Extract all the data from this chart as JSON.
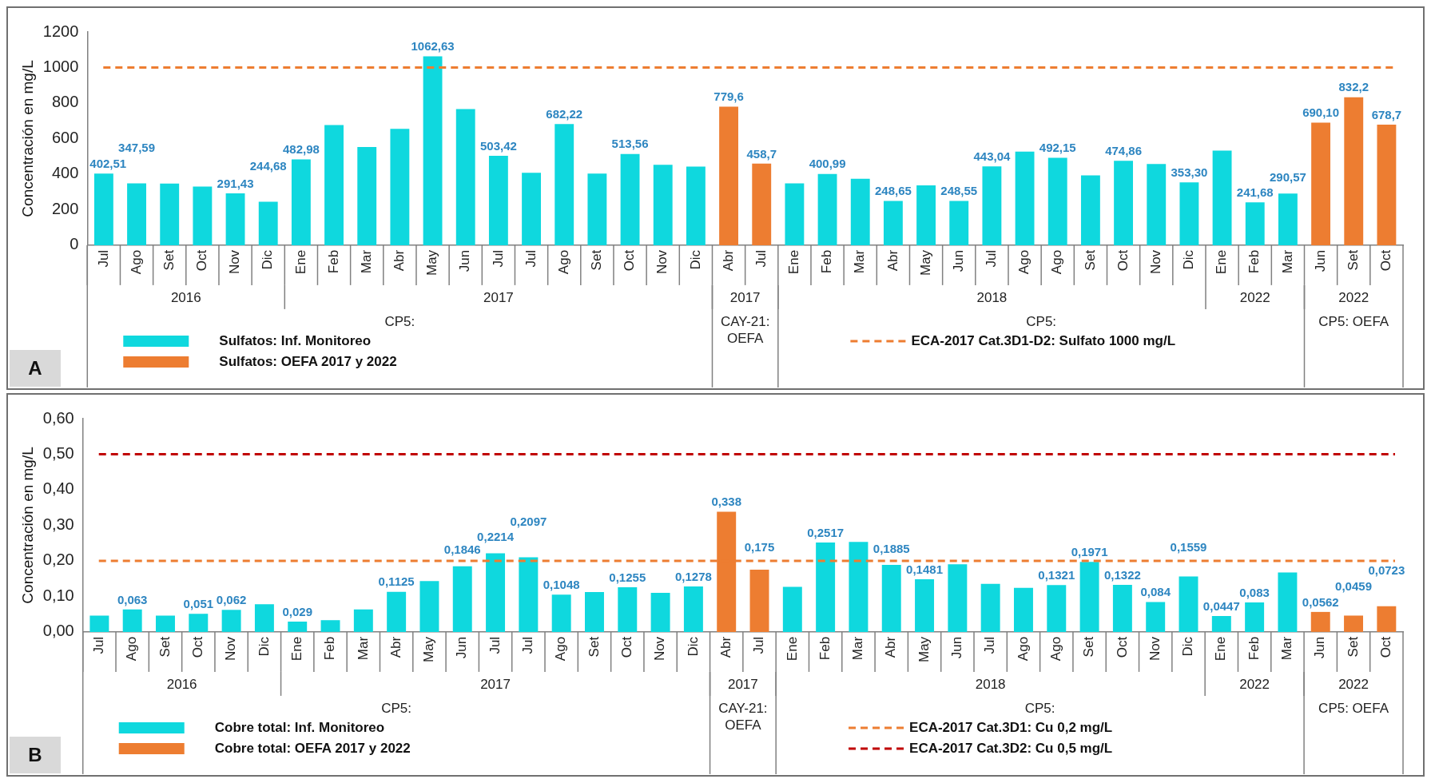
{
  "chart_data": [
    {
      "type": "bar",
      "title": "A",
      "ylabel": "Concentración en mg/L",
      "legend": "bottom",
      "categories": [
        "Jul",
        "Ago",
        "Set",
        "Oct",
        "Nov",
        "Dic",
        "Ene",
        "Feb",
        "Mar",
        "Abr",
        "May",
        "Jun",
        "Jul",
        "Jul",
        "Ago",
        "Set",
        "Oct",
        "Nov",
        "Dic",
        "Abr",
        "Jul",
        "Ene",
        "Feb",
        "Mar",
        "Abr",
        "May",
        "Jun",
        "Jul",
        "Ago",
        "Ago",
        "Set",
        "Oct",
        "Nov",
        "Dic",
        "Ene",
        "Feb",
        "Mar",
        "Jun",
        "Set",
        "Oct"
      ],
      "series": [
        {
          "name": "Sulfatos: Inf. Monitoreo",
          "color": "#0fd8de",
          "values": [
            402.51,
            347.59,
            347,
            330,
            291.43,
            244.68,
            482.98,
            676,
            553,
            655,
            1062.63,
            766,
            503.42,
            408,
            682.22,
            403,
            513.56,
            453,
            442,
            null,
            null,
            348,
            400.99,
            374,
            248.65,
            337,
            248.55,
            443.04,
            527,
            492.15,
            393,
            474.86,
            457,
            353.3,
            532,
            241.68,
            290.57,
            null,
            null,
            null
          ],
          "value_labels": [
            "402,51",
            "347,59",
            null,
            null,
            "291,43",
            "244,68",
            "482,98",
            null,
            null,
            null,
            "1062,63",
            null,
            "503,42",
            null,
            "682,22",
            null,
            "513,56",
            null,
            null,
            null,
            null,
            null,
            "400,99",
            null,
            "248,65",
            null,
            "248,55",
            "443,04",
            null,
            "492,15",
            null,
            "474,86",
            null,
            "353,30",
            null,
            "241,68",
            "290,57",
            null,
            null,
            null
          ]
        },
        {
          "name": "Sulfatos: OEFA 2017 y 2022",
          "color": "#ed7d31",
          "values": [
            null,
            null,
            null,
            null,
            null,
            null,
            null,
            null,
            null,
            null,
            null,
            null,
            null,
            null,
            null,
            null,
            null,
            null,
            null,
            779.6,
            458.7,
            null,
            null,
            null,
            null,
            null,
            null,
            null,
            null,
            null,
            null,
            null,
            null,
            null,
            null,
            null,
            null,
            690.1,
            832.2,
            678.7
          ],
          "value_labels": [
            null,
            null,
            null,
            null,
            null,
            null,
            null,
            null,
            null,
            null,
            null,
            null,
            null,
            null,
            null,
            null,
            null,
            null,
            null,
            "779,6",
            "458,7",
            null,
            null,
            null,
            null,
            null,
            null,
            null,
            null,
            null,
            null,
            null,
            null,
            null,
            null,
            null,
            null,
            "690,10",
            "832,2",
            "678,7"
          ]
        }
      ],
      "ylim": [
        0,
        1200
      ],
      "yticks": [
        0,
        200,
        400,
        600,
        800,
        1000,
        1200
      ],
      "ref_lines": [
        {
          "axis": "y",
          "value": 1000,
          "label": "ECA-2017 Cat.3D1-D2: Sulfato 1000 mg/L",
          "color": "#ed7d31",
          "line_style": "dashed"
        }
      ],
      "annotations": [
        "2016",
        "2017",
        "2017",
        "2018",
        "2022",
        "2022",
        "CP5:",
        "CAY-21: OEFA",
        "CP5:",
        "CP5: OEFA"
      ]
    },
    {
      "type": "bar",
      "title": "B",
      "ylabel": "Concentración en mg/L",
      "legend": "bottom",
      "categories": [
        "Jul",
        "Ago",
        "Set",
        "Oct",
        "Nov",
        "Dic",
        "Ene",
        "Feb",
        "Mar",
        "Abr",
        "May",
        "Jun",
        "Jul",
        "Jul",
        "Ago",
        "Set",
        "Oct",
        "Nov",
        "Dic",
        "Abr",
        "Jul",
        "Ene",
        "Feb",
        "Mar",
        "Abr",
        "May",
        "Jun",
        "Jul",
        "Ago",
        "Ago",
        "Set",
        "Oct",
        "Nov",
        "Dic",
        "Ene",
        "Feb",
        "Mar",
        "Jun",
        "Set",
        "Oct"
      ],
      "series": [
        {
          "name": "Cobre total: Inf. Monitoreo",
          "color": "#0fd8de",
          "values": [
            0.046,
            0.063,
            0.046,
            0.051,
            0.062,
            0.078,
            0.029,
            0.033,
            0.063,
            0.1125,
            0.143,
            0.1846,
            0.2214,
            0.2097,
            0.1048,
            0.112,
            0.1255,
            0.11,
            0.1278,
            null,
            null,
            0.127,
            0.2517,
            0.253,
            0.1885,
            0.1481,
            0.19,
            0.135,
            0.124,
            0.1321,
            0.1971,
            0.1322,
            0.084,
            0.1559,
            0.0447,
            0.083,
            0.167,
            null,
            null,
            null
          ],
          "value_labels": [
            null,
            "0,063",
            null,
            "0,051",
            "0,062",
            null,
            "0,029",
            null,
            null,
            "0,1125",
            null,
            "0,1846",
            "0,2214",
            "0,2097",
            "0,1048",
            null,
            "0,1255",
            null,
            "0,1278",
            null,
            null,
            null,
            "0,2517",
            null,
            "0,1885",
            "0,1481",
            null,
            null,
            null,
            "0,1321",
            "0,1971",
            "0,1322",
            "0,084",
            "0,1559",
            "0,0447",
            "0,083",
            null,
            null,
            null,
            null
          ]
        },
        {
          "name": "Cobre total: OEFA 2017 y 2022",
          "color": "#ed7d31",
          "values": [
            null,
            null,
            null,
            null,
            null,
            null,
            null,
            null,
            null,
            null,
            null,
            null,
            null,
            null,
            null,
            null,
            null,
            null,
            null,
            0.338,
            0.175,
            null,
            null,
            null,
            null,
            null,
            null,
            null,
            null,
            null,
            null,
            null,
            null,
            null,
            null,
            null,
            null,
            0.0562,
            0.0459,
            0.0723
          ],
          "value_labels": [
            null,
            null,
            null,
            null,
            null,
            null,
            null,
            null,
            null,
            null,
            null,
            null,
            null,
            null,
            null,
            null,
            null,
            null,
            null,
            "0,338",
            "0,175",
            null,
            null,
            null,
            null,
            null,
            null,
            null,
            null,
            null,
            null,
            null,
            null,
            null,
            null,
            null,
            null,
            "0,0562",
            "0,0459",
            "0,0723"
          ]
        }
      ],
      "ylim": [
        0,
        0.6
      ],
      "yticks": [
        {
          "value": 0,
          "label": "0,00"
        },
        {
          "value": 0.1,
          "label": "0,10"
        },
        {
          "value": 0.2,
          "label": "0,20"
        },
        {
          "value": 0.3,
          "label": "0,30"
        },
        {
          "value": 0.4,
          "label": "0,40"
        },
        {
          "value": 0.5,
          "label": "0,50"
        },
        {
          "value": 0.6,
          "label": "0,60"
        }
      ],
      "ref_lines": [
        {
          "axis": "y",
          "value": 0.2,
          "label": "ECA-2017 Cat.3D1: Cu 0,2 mg/L",
          "color": "#ed7d31",
          "line_style": "dashed"
        },
        {
          "axis": "y",
          "value": 0.5,
          "label": "ECA-2017 Cat.3D2: Cu 0,5 mg/L",
          "color": "#c00000",
          "line_style": "dashed"
        }
      ],
      "annotations": [
        "2016",
        "2017",
        "2017",
        "2018",
        "2022",
        "2022",
        "CP5:",
        "CAY-21: OEFA",
        "CP5:",
        "CP5: OEFA"
      ]
    }
  ]
}
